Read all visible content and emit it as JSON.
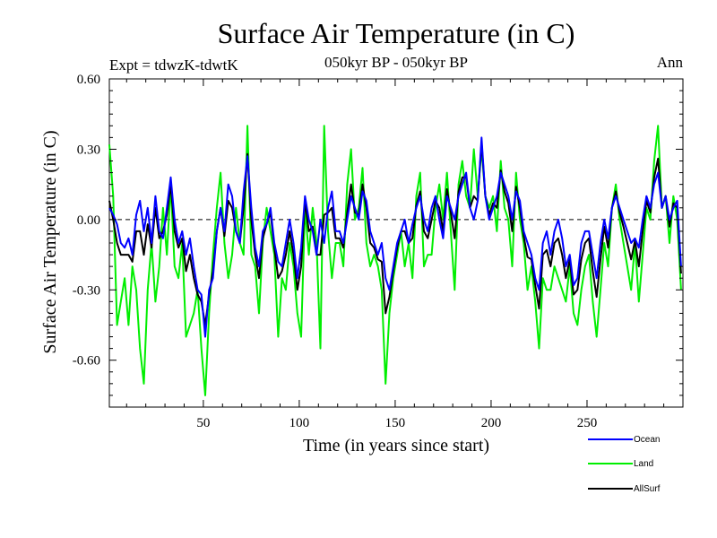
{
  "chart_data": {
    "type": "line",
    "title": "Surface Air Temperature (in C)",
    "expt_label": "Expt = tdwzK-tdwtK",
    "period_label": "050kyr BP - 050kyr BP",
    "season_label": "Ann",
    "xlabel": "Time (in years since start)",
    "ylabel": "Surface Air Temperature (in C)",
    "xlim": [
      1,
      300
    ],
    "ylim": [
      -0.8,
      0.6
    ],
    "x_ticks": [
      50,
      100,
      150,
      200,
      250
    ],
    "x_tick_labels": [
      "50",
      "100",
      "150",
      "200",
      "250"
    ],
    "y_ticks": [
      0.6,
      0.3,
      0.0,
      -0.3,
      -0.6
    ],
    "y_tick_labels": [
      "0.60",
      "0.30",
      "0.00",
      "-0.30",
      "-0.60"
    ],
    "zero_line": true,
    "grid": false,
    "legend_position": "bottom-right",
    "x": [
      1,
      3,
      5,
      7,
      9,
      11,
      13,
      15,
      17,
      19,
      21,
      23,
      25,
      27,
      29,
      31,
      33,
      35,
      37,
      39,
      41,
      43,
      45,
      47,
      49,
      51,
      53,
      55,
      57,
      59,
      61,
      63,
      65,
      67,
      69,
      71,
      73,
      75,
      77,
      79,
      81,
      83,
      85,
      87,
      89,
      91,
      93,
      95,
      97,
      99,
      101,
      103,
      105,
      107,
      109,
      111,
      113,
      115,
      117,
      119,
      121,
      123,
      125,
      127,
      129,
      131,
      133,
      135,
      137,
      139,
      141,
      143,
      145,
      147,
      149,
      151,
      153,
      155,
      157,
      159,
      161,
      163,
      165,
      167,
      169,
      171,
      173,
      175,
      177,
      179,
      181,
      183,
      185,
      187,
      189,
      191,
      193,
      195,
      197,
      199,
      201,
      203,
      205,
      207,
      209,
      211,
      213,
      215,
      217,
      219,
      221,
      223,
      225,
      227,
      229,
      231,
      233,
      235,
      237,
      239,
      241,
      243,
      245,
      247,
      249,
      251,
      253,
      255,
      257,
      259,
      261,
      263,
      265,
      267,
      269,
      271,
      273,
      275,
      277,
      279,
      281,
      283,
      285,
      287,
      289,
      291,
      293,
      295,
      297,
      299
    ],
    "series": [
      {
        "name": "Ocean",
        "color": "#0000ff",
        "values": [
          0.05,
          0.02,
          -0.02,
          -0.1,
          -0.12,
          -0.08,
          -0.15,
          0.02,
          0.08,
          -0.05,
          0.05,
          -0.1,
          0.1,
          -0.05,
          -0.08,
          0.05,
          0.18,
          0.0,
          -0.1,
          -0.05,
          -0.15,
          -0.08,
          -0.2,
          -0.3,
          -0.32,
          -0.5,
          -0.3,
          -0.25,
          -0.05,
          0.05,
          -0.05,
          0.15,
          0.1,
          -0.05,
          -0.1,
          0.12,
          0.27,
          0.05,
          -0.12,
          -0.2,
          -0.05,
          -0.02,
          0.05,
          -0.1,
          -0.18,
          -0.2,
          -0.1,
          0.0,
          -0.1,
          -0.25,
          -0.12,
          0.1,
          0.0,
          -0.05,
          -0.15,
          0.0,
          -0.1,
          0.05,
          0.12,
          -0.05,
          -0.05,
          -0.1,
          0.0,
          0.1,
          0.05,
          0.0,
          0.12,
          0.08,
          -0.05,
          -0.1,
          -0.15,
          -0.1,
          -0.25,
          -0.3,
          -0.2,
          -0.1,
          -0.05,
          0.0,
          -0.1,
          -0.02,
          0.05,
          0.1,
          0.0,
          -0.05,
          0.05,
          0.1,
          0.0,
          -0.08,
          0.1,
          0.05,
          0.0,
          0.1,
          0.15,
          0.2,
          0.05,
          0.0,
          0.08,
          0.35,
          0.1,
          0.0,
          0.05,
          0.1,
          0.2,
          0.15,
          0.1,
          0.0,
          0.12,
          0.08,
          -0.05,
          -0.1,
          -0.15,
          -0.25,
          -0.3,
          -0.1,
          -0.05,
          -0.15,
          -0.05,
          0.0,
          -0.08,
          -0.2,
          -0.15,
          -0.28,
          -0.25,
          -0.1,
          -0.05,
          -0.05,
          -0.15,
          -0.25,
          -0.1,
          0.0,
          -0.08,
          0.05,
          0.1,
          0.05,
          0.0,
          -0.05,
          -0.1,
          -0.08,
          -0.12,
          0.0,
          0.1,
          0.05,
          0.15,
          0.2,
          0.05,
          0.1,
          0.0,
          0.05,
          0.08,
          -0.2
        ]
      },
      {
        "name": "Land",
        "color": "#00ee00",
        "values": [
          0.32,
          0.1,
          -0.45,
          -0.35,
          -0.25,
          -0.45,
          -0.2,
          -0.3,
          -0.55,
          -0.7,
          -0.3,
          -0.1,
          -0.35,
          -0.2,
          0.05,
          -0.15,
          0.15,
          -0.2,
          -0.25,
          -0.1,
          -0.5,
          -0.45,
          -0.4,
          -0.3,
          -0.55,
          -0.75,
          -0.4,
          -0.15,
          0.05,
          0.2,
          -0.1,
          -0.25,
          -0.15,
          0.05,
          -0.1,
          -0.15,
          0.4,
          -0.15,
          -0.2,
          -0.4,
          -0.1,
          0.05,
          -0.05,
          -0.15,
          -0.5,
          -0.25,
          -0.3,
          -0.1,
          -0.2,
          -0.4,
          -0.5,
          0.05,
          -0.15,
          0.05,
          -0.1,
          -0.55,
          0.4,
          -0.05,
          -0.25,
          -0.1,
          -0.1,
          -0.2,
          0.15,
          0.3,
          0.0,
          0.05,
          0.22,
          -0.1,
          -0.2,
          -0.15,
          -0.2,
          -0.3,
          -0.7,
          -0.4,
          -0.25,
          -0.15,
          -0.05,
          -0.2,
          -0.1,
          -0.25,
          0.1,
          0.2,
          -0.2,
          -0.15,
          -0.15,
          0.05,
          0.15,
          0.0,
          0.2,
          -0.05,
          -0.3,
          0.15,
          0.25,
          0.1,
          0.05,
          0.3,
          0.1,
          0.3,
          0.1,
          0.05,
          0.1,
          -0.05,
          0.25,
          0.05,
          0.0,
          -0.2,
          0.2,
          0.0,
          -0.1,
          -0.3,
          -0.2,
          -0.35,
          -0.55,
          -0.25,
          -0.3,
          -0.3,
          -0.2,
          -0.25,
          -0.3,
          -0.35,
          -0.2,
          -0.4,
          -0.45,
          -0.3,
          -0.2,
          -0.15,
          -0.35,
          -0.5,
          -0.3,
          -0.1,
          -0.2,
          0.05,
          0.15,
          0.0,
          -0.1,
          -0.2,
          -0.3,
          -0.1,
          -0.35,
          -0.15,
          0.05,
          0.0,
          0.25,
          0.4,
          0.05,
          0.1,
          -0.1,
          0.1,
          0.0,
          -0.3
        ]
      },
      {
        "name": "AllSurf",
        "color": "#000000",
        "values": [
          0.08,
          0.0,
          -0.1,
          -0.15,
          -0.15,
          -0.15,
          -0.18,
          -0.05,
          -0.05,
          -0.15,
          -0.02,
          -0.12,
          0.05,
          -0.08,
          -0.05,
          0.02,
          0.15,
          -0.05,
          -0.12,
          -0.08,
          -0.22,
          -0.15,
          -0.25,
          -0.32,
          -0.35,
          -0.45,
          -0.32,
          -0.22,
          -0.05,
          0.05,
          -0.07,
          0.08,
          0.05,
          -0.05,
          -0.1,
          0.05,
          0.28,
          0.0,
          -0.15,
          -0.25,
          -0.08,
          -0.02,
          0.03,
          -0.12,
          -0.25,
          -0.22,
          -0.15,
          -0.05,
          -0.15,
          -0.3,
          -0.2,
          0.08,
          -0.05,
          -0.03,
          -0.15,
          -0.15,
          0.02,
          0.03,
          0.05,
          -0.08,
          -0.08,
          -0.12,
          0.03,
          0.15,
          0.03,
          0.02,
          0.15,
          0.05,
          -0.1,
          -0.12,
          -0.17,
          -0.18,
          -0.4,
          -0.33,
          -0.22,
          -0.12,
          -0.05,
          -0.05,
          -0.1,
          -0.08,
          0.06,
          0.12,
          -0.05,
          -0.08,
          0.0,
          0.08,
          0.05,
          -0.05,
          0.13,
          0.03,
          -0.08,
          0.12,
          0.18,
          0.18,
          0.05,
          0.1,
          0.08,
          0.33,
          0.1,
          0.02,
          0.07,
          0.05,
          0.21,
          0.12,
          0.07,
          -0.05,
          0.14,
          0.05,
          -0.07,
          -0.16,
          -0.17,
          -0.28,
          -0.38,
          -0.15,
          -0.13,
          -0.2,
          -0.1,
          -0.08,
          -0.15,
          -0.25,
          -0.17,
          -0.32,
          -0.3,
          -0.17,
          -0.1,
          -0.08,
          -0.22,
          -0.33,
          -0.17,
          -0.03,
          -0.12,
          0.05,
          0.12,
          0.03,
          -0.03,
          -0.1,
          -0.17,
          -0.09,
          -0.2,
          -0.05,
          0.08,
          0.03,
          0.18,
          0.26,
          0.05,
          0.1,
          -0.03,
          0.07,
          0.05,
          -0.23
        ]
      }
    ]
  }
}
